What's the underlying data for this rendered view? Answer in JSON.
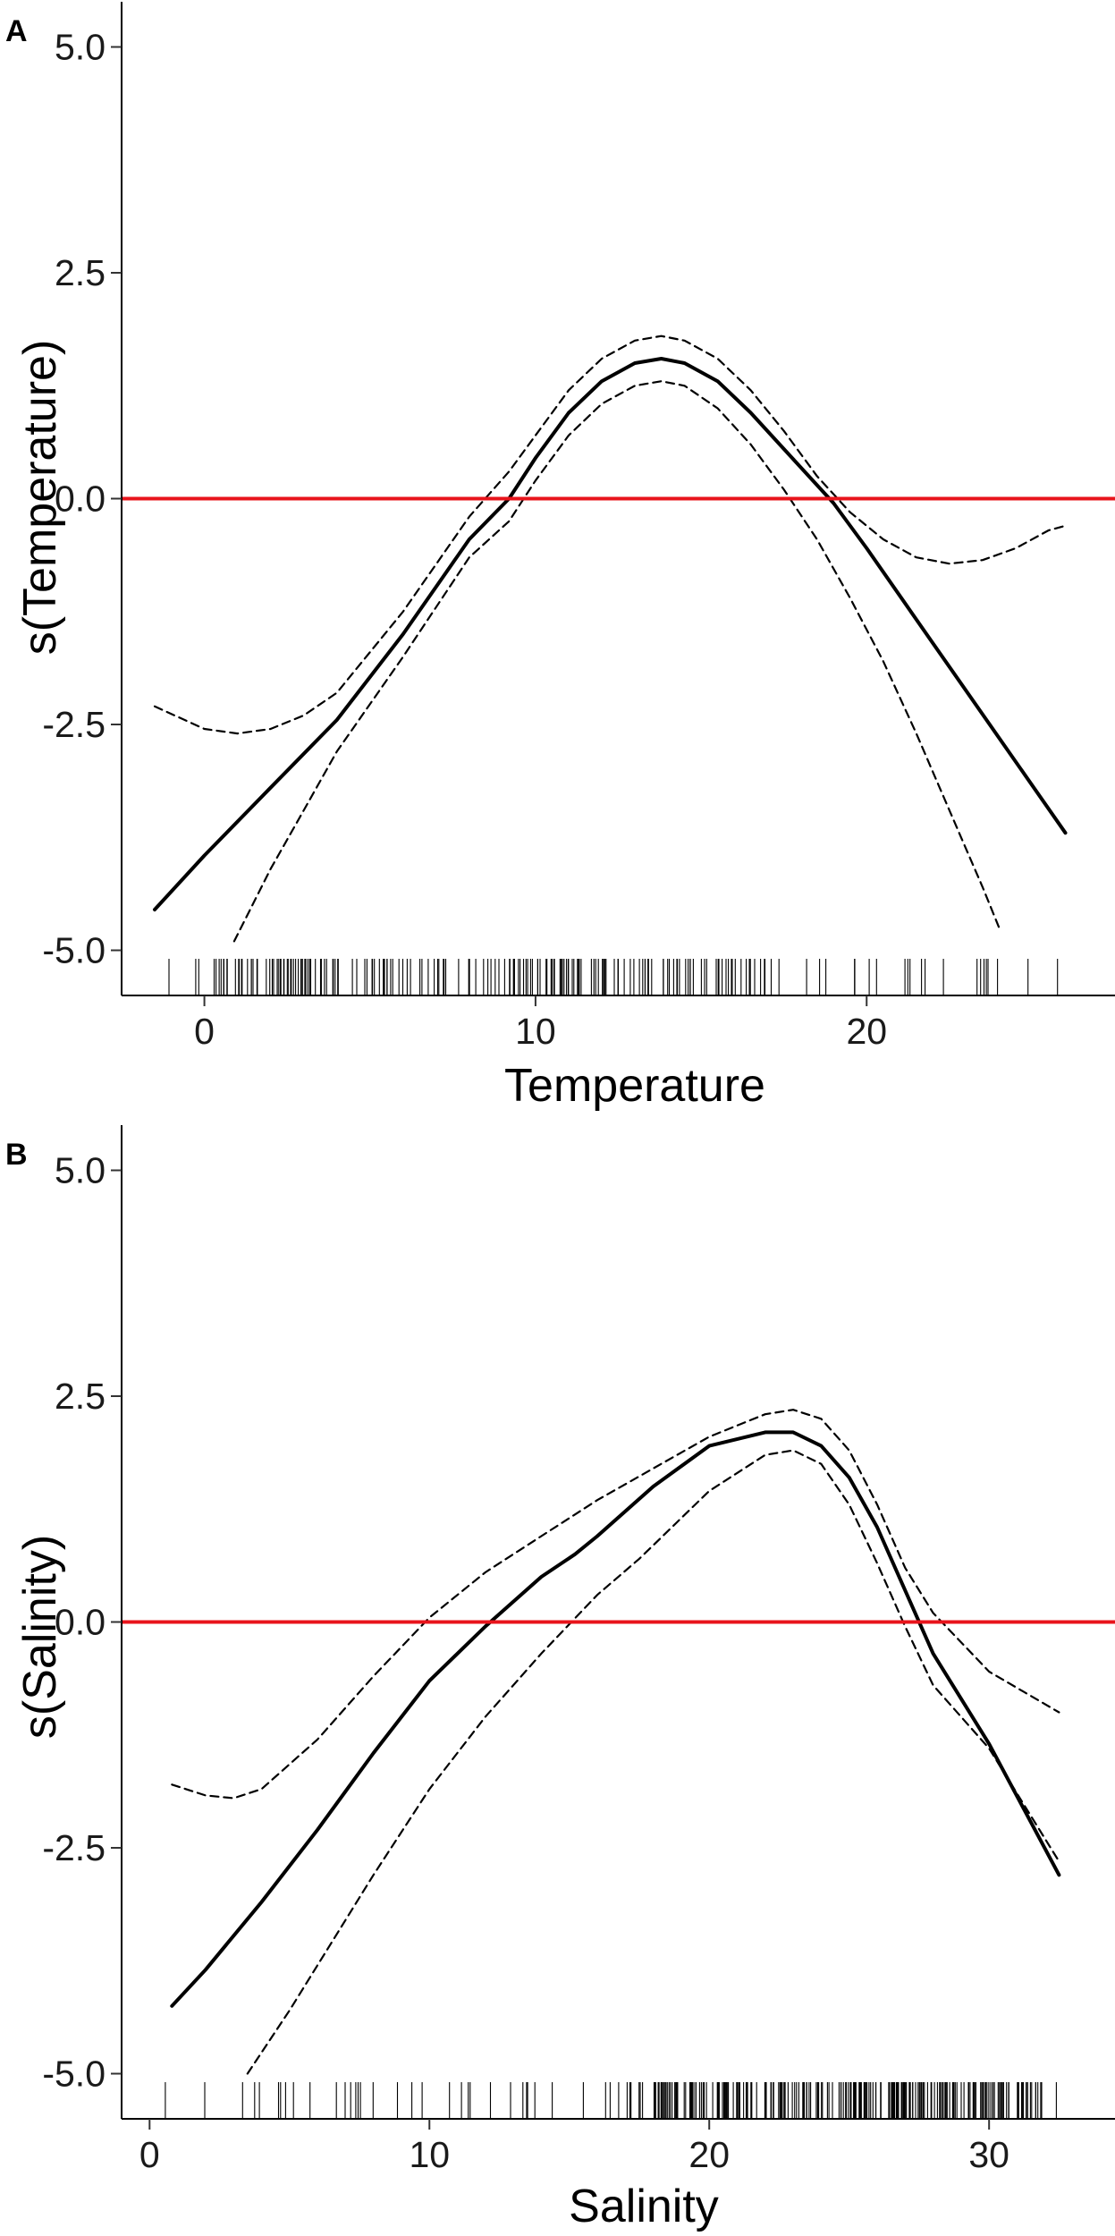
{
  "chart_data": [
    {
      "type": "line",
      "panel_label": "A",
      "xlabel": "Temperature",
      "ylabel": "s(Temperature)",
      "xlim": [
        -2.5,
        27.5
      ],
      "ylim": [
        -5.5,
        5.5
      ],
      "x_ticks": [
        0,
        10,
        20
      ],
      "y_ticks": [
        -5.0,
        -2.5,
        0.0,
        2.5,
        5.0
      ],
      "y_tick_labels": [
        "-5.0",
        "-2.5",
        "0.0",
        "2.5",
        "5.0"
      ],
      "grid": false,
      "reference_line": {
        "y": 0,
        "color": "#e8141b"
      },
      "series": [
        {
          "role": "fit",
          "style": "solid",
          "x": [
            -1.5,
            0,
            2,
            4,
            6,
            8,
            9.2,
            10,
            11,
            12,
            13,
            13.8,
            14.5,
            15.5,
            16.5,
            17.5,
            19,
            20,
            22,
            24,
            26
          ],
          "y": [
            -4.55,
            -3.95,
            -3.2,
            -2.45,
            -1.5,
            -0.45,
            0.0,
            0.45,
            0.95,
            1.3,
            1.5,
            1.55,
            1.5,
            1.3,
            0.95,
            0.55,
            -0.05,
            -0.55,
            -1.6,
            -2.65,
            -3.7
          ]
        },
        {
          "role": "upper-ci",
          "style": "dashed",
          "x": [
            -1.5,
            0,
            1,
            2,
            3,
            4,
            6,
            8,
            9.2,
            10,
            11,
            12,
            13,
            13.8,
            14.5,
            15.5,
            16.5,
            17.5,
            18.5,
            19.5,
            20.5,
            21.5,
            22.5,
            23.5,
            24.5,
            25.5,
            26
          ],
          "y": [
            -2.3,
            -2.55,
            -2.6,
            -2.55,
            -2.4,
            -2.15,
            -1.25,
            -0.2,
            0.3,
            0.7,
            1.2,
            1.55,
            1.75,
            1.8,
            1.75,
            1.55,
            1.2,
            0.75,
            0.25,
            -0.15,
            -0.45,
            -0.65,
            -0.72,
            -0.68,
            -0.55,
            -0.35,
            -0.3
          ]
        },
        {
          "role": "lower-ci",
          "style": "dashed",
          "x": [
            0.9,
            2,
            3,
            4,
            6,
            8,
            9.2,
            10,
            11,
            12,
            13,
            13.8,
            14.5,
            15.5,
            16.5,
            17.5,
            18.5,
            19.5,
            20.5,
            21.5,
            22.5,
            23.5,
            24
          ],
          "y": [
            -4.9,
            -4.1,
            -3.45,
            -2.8,
            -1.75,
            -0.65,
            -0.25,
            0.2,
            0.7,
            1.05,
            1.25,
            1.3,
            1.25,
            1.0,
            0.6,
            0.1,
            -0.45,
            -1.1,
            -1.8,
            -2.6,
            -3.45,
            -4.3,
            -4.75
          ]
        }
      ],
      "rug": {
        "range": [
          -1.5,
          26
        ],
        "dense_range": [
          0.5,
          17
        ],
        "count": 220
      }
    },
    {
      "type": "line",
      "panel_label": "B",
      "xlabel": "Salinity",
      "ylabel": "s(Salinity)",
      "xlim": [
        -1,
        34.5
      ],
      "ylim": [
        -5.5,
        5.5
      ],
      "x_ticks": [
        0,
        10,
        20,
        30
      ],
      "y_ticks": [
        -5.0,
        -2.5,
        0.0,
        2.5,
        5.0
      ],
      "y_tick_labels": [
        "-5.0",
        "-2.5",
        "0.0",
        "2.5",
        "5.0"
      ],
      "grid": false,
      "reference_line": {
        "y": 0,
        "color": "#e8141b"
      },
      "series": [
        {
          "role": "fit",
          "style": "solid",
          "x": [
            0.8,
            2,
            4,
            6,
            8,
            10,
            12,
            14,
            15.2,
            16,
            18,
            20,
            22,
            23,
            24,
            25,
            26,
            27,
            28,
            30,
            32.5
          ],
          "y": [
            -4.25,
            -3.85,
            -3.1,
            -2.3,
            -1.45,
            -0.65,
            -0.05,
            0.5,
            0.75,
            0.95,
            1.5,
            1.95,
            2.1,
            2.1,
            1.95,
            1.6,
            1.05,
            0.35,
            -0.35,
            -1.35,
            -2.8
          ]
        },
        {
          "role": "upper-ci",
          "style": "dashed",
          "x": [
            0.8,
            2,
            3,
            4,
            6,
            8,
            10,
            12,
            12.5,
            14,
            16,
            18,
            20,
            22,
            23,
            24,
            25,
            26,
            27,
            28,
            30,
            32.5
          ],
          "y": [
            -1.8,
            -1.92,
            -1.95,
            -1.85,
            -1.3,
            -0.6,
            0.05,
            0.55,
            0.65,
            0.95,
            1.35,
            1.7,
            2.05,
            2.3,
            2.35,
            2.25,
            1.9,
            1.3,
            0.6,
            0.1,
            -0.55,
            -1.0
          ]
        },
        {
          "role": "lower-ci",
          "style": "dashed",
          "x": [
            3.5,
            5,
            6,
            8,
            10,
            12,
            14,
            16,
            17.5,
            18,
            20,
            22,
            23,
            24,
            25,
            26,
            27,
            28,
            30,
            32.5
          ],
          "y": [
            -5.0,
            -4.3,
            -3.8,
            -2.8,
            -1.85,
            -1.05,
            -0.35,
            0.3,
            0.7,
            0.85,
            1.45,
            1.85,
            1.9,
            1.75,
            1.3,
            0.65,
            -0.05,
            -0.7,
            -1.4,
            -2.65
          ]
        }
      ],
      "rug": {
        "range": [
          0.5,
          33
        ],
        "dense_range": [
          18,
          32
        ],
        "count": 300
      }
    }
  ]
}
